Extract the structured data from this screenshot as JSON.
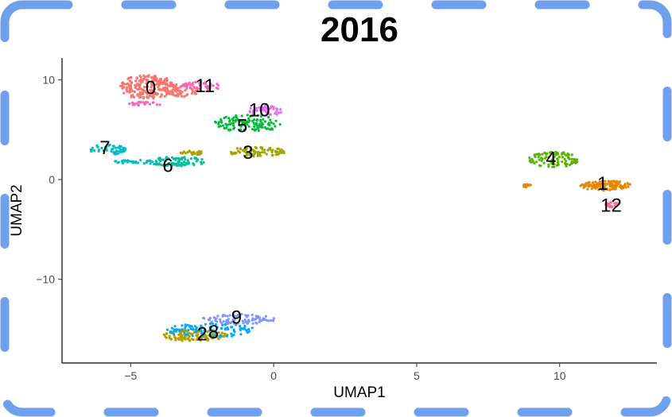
{
  "chart_data": {
    "type": "scatter",
    "title": "2016",
    "xlabel": "UMAP1",
    "ylabel": "UMAP2",
    "xlim": [
      -7.4,
      13.4
    ],
    "ylim": [
      -18.4,
      12.2
    ],
    "xticks": [
      -5,
      0,
      5,
      10
    ],
    "yticks": [
      -10,
      0,
      10
    ],
    "xtick_labels": [
      "−5",
      "0",
      "5",
      "10"
    ],
    "ytick_labels": [
      "−10",
      "0",
      "10"
    ],
    "grid": false,
    "legend": "none",
    "clusters": [
      {
        "label": "0",
        "color": "#F8766D",
        "label_pos": [
          -4.3,
          9.2
        ],
        "blobs": [
          {
            "cx": -4.4,
            "cy": 9.3,
            "rx": 1.0,
            "ry": 1.2,
            "n": 210
          },
          {
            "cx": -3.2,
            "cy": 9.0,
            "rx": 0.6,
            "ry": 0.7,
            "n": 60
          }
        ]
      },
      {
        "label": "1",
        "color": "#E58700",
        "label_pos": [
          11.5,
          -0.4
        ],
        "blobs": [
          {
            "cx": 11.6,
            "cy": -0.6,
            "rx": 0.9,
            "ry": 0.5,
            "n": 120
          },
          {
            "cx": 8.9,
            "cy": -0.6,
            "rx": 0.2,
            "ry": 0.2,
            "n": 15
          }
        ]
      },
      {
        "label": "2",
        "color": "#B79F00",
        "label_pos": [
          -2.5,
          -15.5
        ],
        "blobs": [
          {
            "cx": -2.8,
            "cy": -15.6,
            "rx": 1.2,
            "ry": 0.6,
            "n": 120
          }
        ]
      },
      {
        "label": "3",
        "color": "#A3A500",
        "label_pos": [
          -0.9,
          2.7
        ],
        "blobs": [
          {
            "cx": -0.6,
            "cy": 2.8,
            "rx": 1.0,
            "ry": 0.5,
            "n": 90
          },
          {
            "cx": -2.8,
            "cy": 2.7,
            "rx": 0.5,
            "ry": 0.2,
            "n": 25
          }
        ]
      },
      {
        "label": "4",
        "color": "#5BB300",
        "label_pos": [
          9.7,
          2.1
        ],
        "blobs": [
          {
            "cx": 9.8,
            "cy": 2.0,
            "rx": 0.9,
            "ry": 0.8,
            "n": 100
          }
        ]
      },
      {
        "label": "5",
        "color": "#00BA38",
        "label_pos": [
          -1.1,
          5.4
        ],
        "blobs": [
          {
            "cx": -0.9,
            "cy": 5.6,
            "rx": 1.2,
            "ry": 0.9,
            "n": 110
          }
        ]
      },
      {
        "label": "6",
        "color": "#00C19F",
        "label_pos": [
          -3.7,
          1.4
        ],
        "blobs": [
          {
            "cx": -3.4,
            "cy": 1.8,
            "rx": 1.1,
            "ry": 0.5,
            "n": 90
          }
        ]
      },
      {
        "label": "7",
        "color": "#00BFC4",
        "label_pos": [
          -5.9,
          3.2
        ],
        "blobs": [
          {
            "cx": -5.8,
            "cy": 3.0,
            "rx": 0.7,
            "ry": 0.5,
            "n": 60
          },
          {
            "cx": -4.9,
            "cy": 1.8,
            "rx": 0.7,
            "ry": 0.2,
            "n": 30
          }
        ]
      },
      {
        "label": "8",
        "color": "#00A9FF",
        "label_pos": [
          -2.1,
          -15.3
        ],
        "blobs": [
          {
            "cx": -2.2,
            "cy": -15.1,
            "rx": 1.6,
            "ry": 0.7,
            "n": 100
          }
        ]
      },
      {
        "label": "9",
        "color": "#8494FF",
        "label_pos": [
          -1.3,
          -13.8
        ],
        "blobs": [
          {
            "cx": -1.2,
            "cy": -14.0,
            "rx": 1.3,
            "ry": 0.5,
            "n": 80
          }
        ]
      },
      {
        "label": "10",
        "color": "#E76BF3",
        "label_pos": [
          -0.5,
          7.0
        ],
        "blobs": [
          {
            "cx": -0.3,
            "cy": 6.9,
            "rx": 0.6,
            "ry": 0.5,
            "n": 45
          }
        ]
      },
      {
        "label": "11",
        "color": "#FF62BC",
        "label_pos": [
          -2.4,
          9.4
        ],
        "blobs": [
          {
            "cx": -2.5,
            "cy": 9.4,
            "rx": 0.8,
            "ry": 0.4,
            "n": 40
          },
          {
            "cx": -4.5,
            "cy": 7.6,
            "rx": 0.6,
            "ry": 0.2,
            "n": 25
          }
        ]
      },
      {
        "label": "12",
        "color": "#FF6C91",
        "label_pos": [
          11.8,
          -2.6
        ],
        "blobs": [
          {
            "cx": 11.8,
            "cy": -2.5,
            "rx": 0.3,
            "ry": 0.3,
            "n": 20
          }
        ]
      }
    ]
  },
  "frame": {
    "dash_color": "#6FA0EE",
    "style": "rounded-dashed-border"
  }
}
